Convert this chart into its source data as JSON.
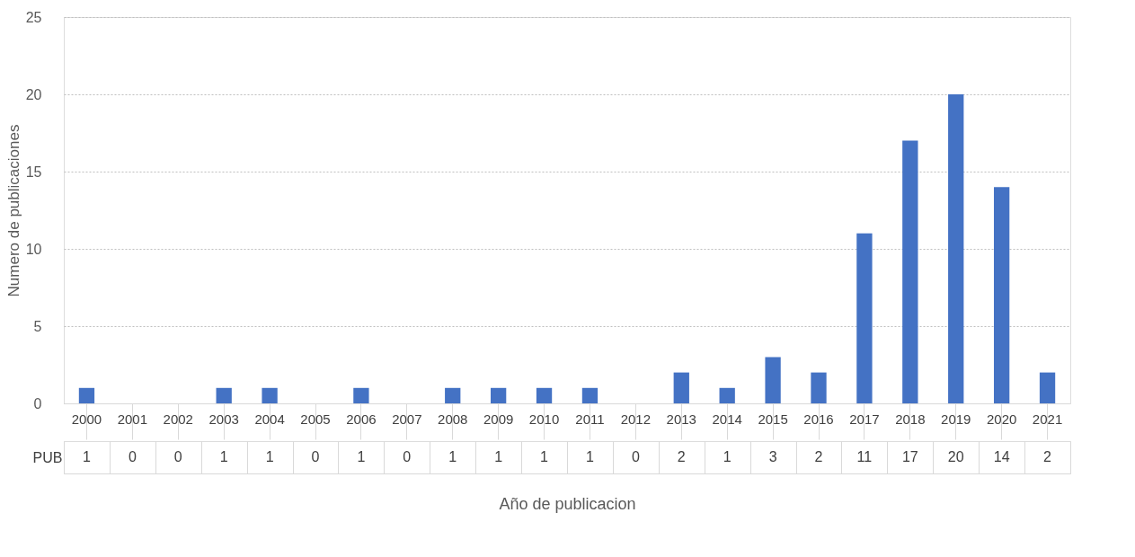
{
  "chart_data": {
    "type": "bar",
    "xlabel": "Año de publicacion",
    "ylabel": "Numero de publicaciones",
    "categories": [
      "2000",
      "2001",
      "2002",
      "2003",
      "2004",
      "2005",
      "2006",
      "2007",
      "2008",
      "2009",
      "2010",
      "2011",
      "2012",
      "2013",
      "2014",
      "2015",
      "2016",
      "2017",
      "2018",
      "2019",
      "2020",
      "2021"
    ],
    "series": [
      {
        "name": "PUB",
        "color": "#4472c4",
        "values": [
          1,
          0,
          0,
          1,
          1,
          0,
          1,
          0,
          1,
          1,
          1,
          1,
          0,
          2,
          1,
          3,
          2,
          11,
          17,
          20,
          14,
          2
        ]
      }
    ],
    "ylim": [
      0,
      25
    ],
    "yticks": [
      0,
      5,
      10,
      15,
      20,
      25
    ],
    "grid": "y",
    "data_labels": true,
    "legend": false
  }
}
